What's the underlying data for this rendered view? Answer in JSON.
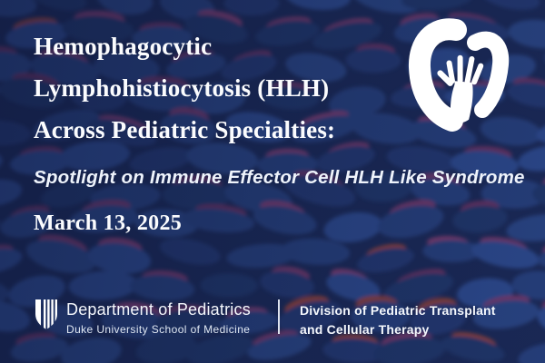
{
  "header": {
    "title_lines": [
      "Hemophagocytic",
      "Lymphohistiocytosis (HLH)",
      "Across Pediatric Specialties:"
    ],
    "subtitle": "Spotlight on Immune Effector Cell HLH Like Syndrome",
    "date": "March 13, 2025"
  },
  "branding": {
    "logo_icon": "duke-shield-icon",
    "corner_icon": "hand-in-heart-icon",
    "department": "Department of Pediatrics",
    "school": "Duke University School of Medicine",
    "division_lines": [
      "Division of Pediatric Transplant",
      "and Cellular Therapy"
    ]
  },
  "colors": {
    "background_navy": "#1b2a57",
    "cell_blue": "#2c4a89",
    "cell_pink": "#8c3c6e",
    "cell_red": "#a8472f",
    "text_white": "#fbfcfe"
  }
}
